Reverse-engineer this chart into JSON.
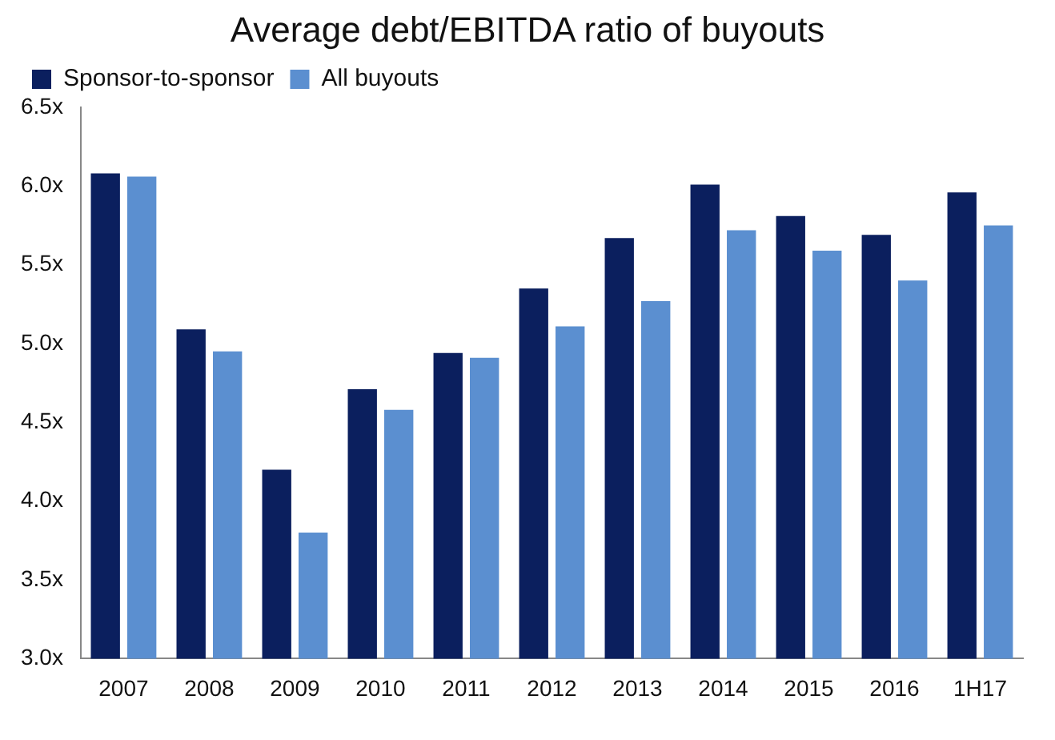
{
  "chart_data": {
    "type": "bar",
    "title": "Average debt/EBITDA ratio of buyouts",
    "categories": [
      "2007",
      "2008",
      "2009",
      "2010",
      "2011",
      "2012",
      "2013",
      "2014",
      "2015",
      "2016",
      "1H17"
    ],
    "series": [
      {
        "name": "Sponsor-to-sponsor",
        "color": "#0b1f5e",
        "values": [
          6.08,
          5.09,
          4.2,
          4.71,
          4.94,
          5.35,
          5.67,
          6.01,
          5.81,
          5.69,
          5.96
        ]
      },
      {
        "name": "All buyouts",
        "color": "#5b8fd0",
        "values": [
          6.06,
          4.95,
          3.8,
          4.58,
          4.91,
          5.11,
          5.27,
          5.72,
          5.59,
          5.4,
          5.75
        ]
      }
    ],
    "ylim": [
      3.0,
      6.5
    ],
    "yticks": [
      {
        "value": 3.0,
        "label": "3.0x"
      },
      {
        "value": 3.5,
        "label": "3.5x"
      },
      {
        "value": 4.0,
        "label": "4.0x"
      },
      {
        "value": 4.5,
        "label": "4.5x"
      },
      {
        "value": 5.0,
        "label": "5.0x"
      },
      {
        "value": 5.5,
        "label": "5.5x"
      },
      {
        "value": 6.0,
        "label": "6.0x"
      },
      {
        "value": 6.5,
        "label": "6.5x"
      }
    ],
    "grid": false,
    "legend": "top left"
  }
}
